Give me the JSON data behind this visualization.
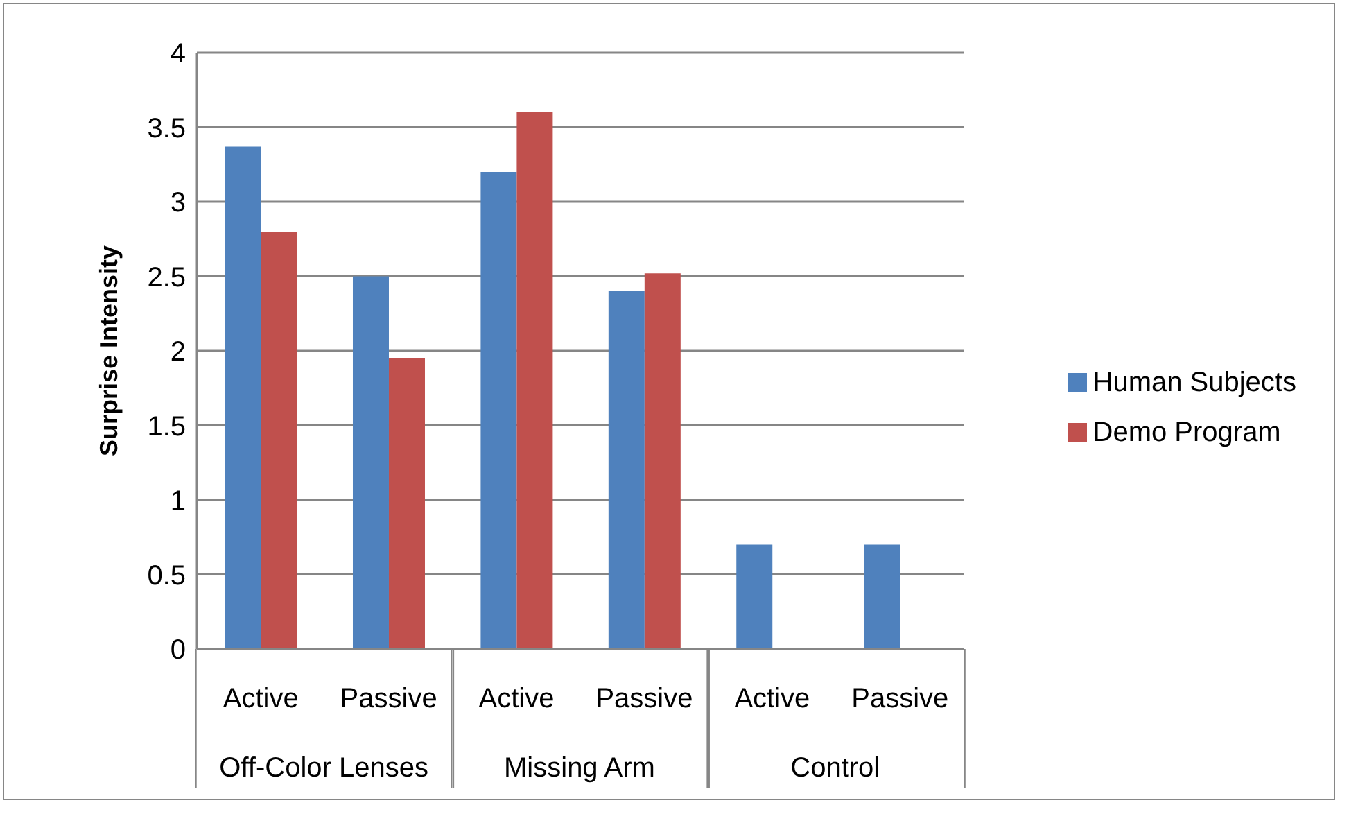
{
  "chart_data": {
    "type": "bar",
    "ylabel": "Surprise Intensity",
    "categories": [
      "Active",
      "Passive",
      "Active",
      "Passive",
      "Active",
      "Passive"
    ],
    "annotations": [
      "Off-Color Lenses",
      "Missing Arm",
      "Control"
    ],
    "series": [
      {
        "name": "Human Subjects",
        "color": "#4f81bd",
        "values": [
          3.37,
          2.5,
          3.2,
          2.4,
          0.7,
          0.7
        ]
      },
      {
        "name": "Demo Program",
        "color": "#c0504d",
        "values": [
          2.8,
          1.95,
          3.6,
          2.52,
          null,
          null
        ]
      }
    ],
    "ylim": [
      0,
      4
    ],
    "yticks": [
      0,
      0.5,
      1,
      1.5,
      2,
      2.5,
      3,
      3.5,
      4
    ],
    "grid": "y",
    "legend": "right"
  }
}
